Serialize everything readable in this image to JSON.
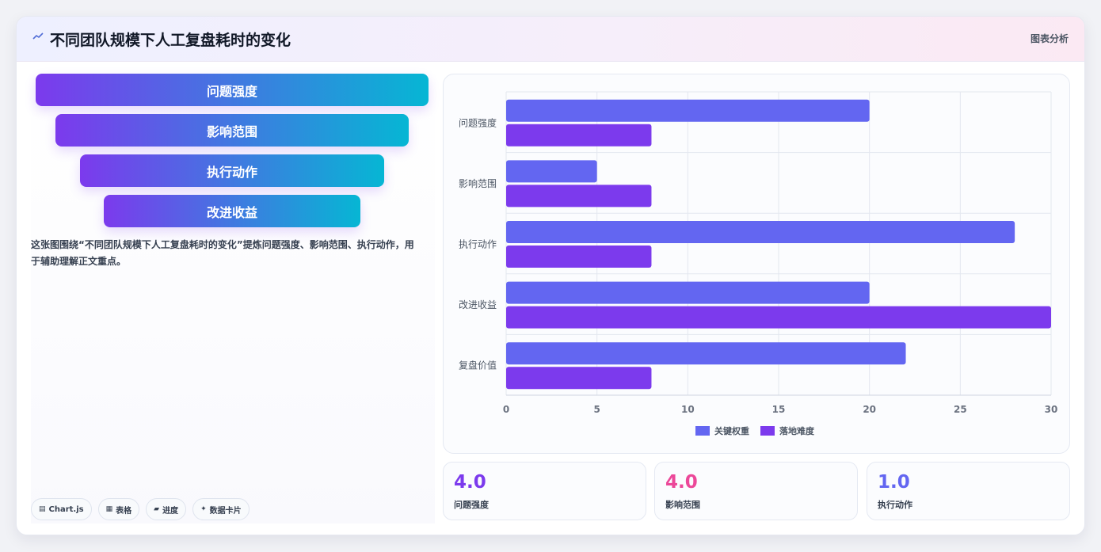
{
  "header": {
    "title": "不同团队规模下人工复盘耗时的变化",
    "tag": "图表分析",
    "icon": "trend-icon"
  },
  "funnel": {
    "items": [
      "问题强度",
      "影响范围",
      "执行动作",
      "改进收益"
    ],
    "gradient": [
      "#7c3aed",
      "#06b6d4"
    ]
  },
  "description": "这张图围绕“不同团队规模下人工复盘耗时的变化”提炼问题强度、影响范围、执行动作，用于辅助理解正文重点。",
  "chips": [
    {
      "icon": "chart-icon",
      "label": "Chart.js"
    },
    {
      "icon": "table-icon",
      "label": "表格"
    },
    {
      "icon": "progress-icon",
      "label": "进度"
    },
    {
      "icon": "sparkle-icon",
      "label": "数据卡片"
    }
  ],
  "stats": [
    {
      "value": "4.0",
      "label": "问题强度",
      "color": "#7c3aed"
    },
    {
      "value": "4.0",
      "label": "影响范围",
      "color": "#ec4899"
    },
    {
      "value": "1.0",
      "label": "执行动作",
      "color": "#6366f1"
    }
  ],
  "chart_data": {
    "type": "bar",
    "orientation": "horizontal",
    "categories": [
      "问题强度",
      "影响范围",
      "执行动作",
      "改进收益",
      "复盘价值"
    ],
    "series": [
      {
        "name": "关键权重",
        "values": [
          20,
          5,
          28,
          20,
          22
        ],
        "color": "#6366f1"
      },
      {
        "name": "落地难度",
        "values": [
          8,
          8,
          8,
          30,
          8
        ],
        "color": "#7c3aed"
      }
    ],
    "xlim": [
      0,
      30
    ],
    "xticks": [
      0,
      5,
      10,
      15,
      20,
      25,
      30
    ],
    "grid": true,
    "legend": "bottom"
  }
}
